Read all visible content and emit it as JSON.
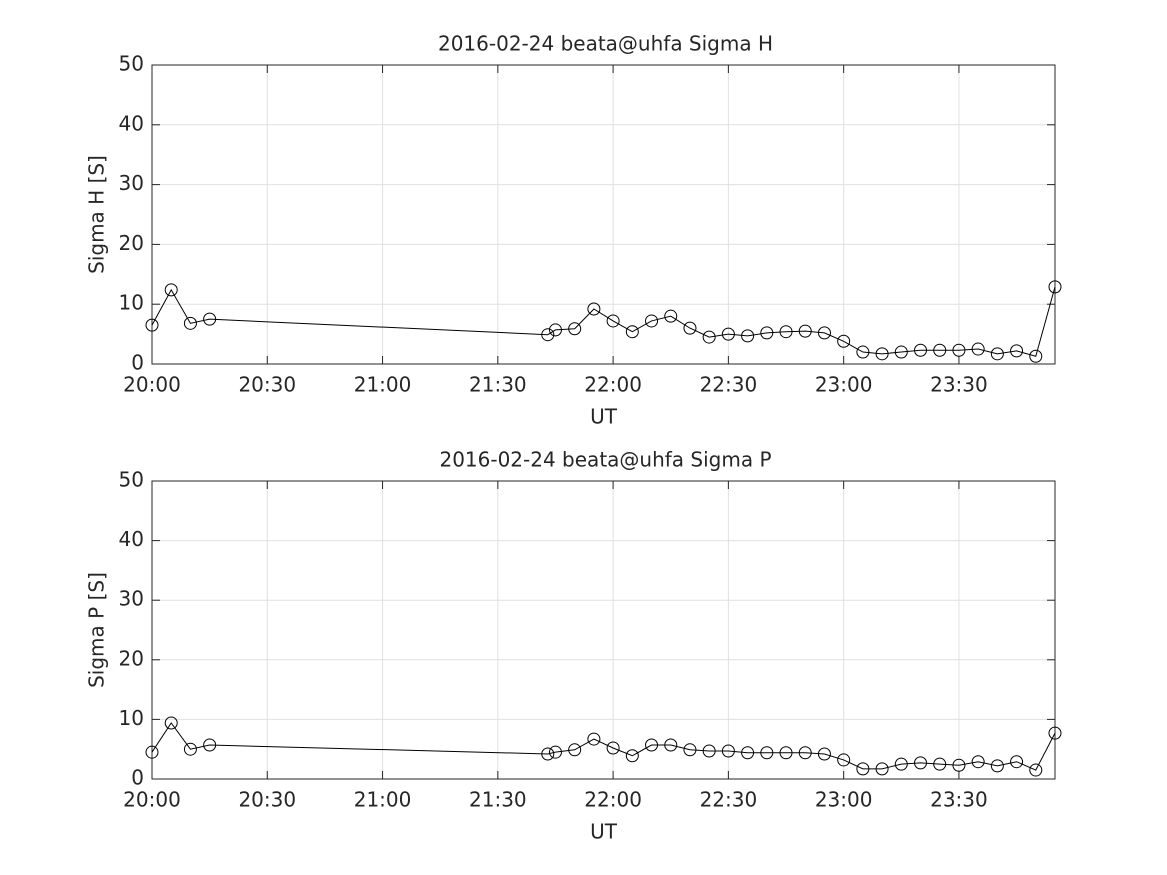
{
  "chart_data": [
    {
      "type": "line",
      "title": "2016-02-24  beata@uhfa Sigma H",
      "xlabel": "UT",
      "ylabel": "Sigma H [S]",
      "x": [
        1200,
        1205,
        1210,
        1215,
        1303,
        1305,
        1310,
        1315,
        1320,
        1325,
        1330,
        1335,
        1340,
        1345,
        1350,
        1355,
        1360,
        1365,
        1370,
        1375,
        1380,
        1385,
        1390,
        1395,
        1400,
        1405,
        1410,
        1415,
        1420,
        1425,
        1430,
        1435
      ],
      "values": [
        6.5,
        12.4,
        6.8,
        7.5,
        4.9,
        5.7,
        5.9,
        9.2,
        7.2,
        5.4,
        7.2,
        8.0,
        6.0,
        4.5,
        5.0,
        4.7,
        5.2,
        5.4,
        5.5,
        5.2,
        3.8,
        2.0,
        1.7,
        2.0,
        2.3,
        2.3,
        2.3,
        2.5,
        1.7,
        2.2,
        1.3,
        12.9
      ],
      "color": "#000000",
      "marker": "circle",
      "xlim": [
        1200,
        1435
      ],
      "xticks": [
        {
          "value": 1200,
          "label": "20:00"
        },
        {
          "value": 1230,
          "label": "20:30"
        },
        {
          "value": 1260,
          "label": "21:00"
        },
        {
          "value": 1290,
          "label": "21:30"
        },
        {
          "value": 1320,
          "label": "22:00"
        },
        {
          "value": 1350,
          "label": "22:30"
        },
        {
          "value": 1380,
          "label": "23:00"
        },
        {
          "value": 1410,
          "label": "23:30"
        }
      ],
      "ylim": [
        0,
        50
      ],
      "yticks": [
        0,
        10,
        20,
        30,
        40,
        50
      ],
      "grid": true
    },
    {
      "type": "line",
      "title": "2016-02-24  beata@uhfa Sigma P",
      "xlabel": "UT",
      "ylabel": "Sigma P [S]",
      "x": [
        1200,
        1205,
        1210,
        1215,
        1303,
        1305,
        1310,
        1315,
        1320,
        1325,
        1330,
        1335,
        1340,
        1345,
        1350,
        1355,
        1360,
        1365,
        1370,
        1375,
        1380,
        1385,
        1390,
        1395,
        1400,
        1405,
        1410,
        1415,
        1420,
        1425,
        1430,
        1435
      ],
      "values": [
        4.5,
        9.4,
        5.0,
        5.7,
        4.2,
        4.5,
        4.9,
        6.7,
        5.2,
        3.9,
        5.7,
        5.7,
        4.9,
        4.7,
        4.7,
        4.4,
        4.4,
        4.4,
        4.4,
        4.2,
        3.2,
        1.7,
        1.7,
        2.5,
        2.7,
        2.5,
        2.3,
        2.9,
        2.2,
        2.9,
        1.5,
        7.7
      ],
      "color": "#000000",
      "marker": "circle",
      "xlim": [
        1200,
        1435
      ],
      "xticks": [
        {
          "value": 1200,
          "label": "20:00"
        },
        {
          "value": 1230,
          "label": "20:30"
        },
        {
          "value": 1260,
          "label": "21:00"
        },
        {
          "value": 1290,
          "label": "21:30"
        },
        {
          "value": 1320,
          "label": "22:00"
        },
        {
          "value": 1350,
          "label": "22:30"
        },
        {
          "value": 1380,
          "label": "23:00"
        },
        {
          "value": 1410,
          "label": "23:30"
        }
      ],
      "ylim": [
        0,
        50
      ],
      "yticks": [
        0,
        10,
        20,
        30,
        40,
        50
      ],
      "grid": true
    }
  ]
}
